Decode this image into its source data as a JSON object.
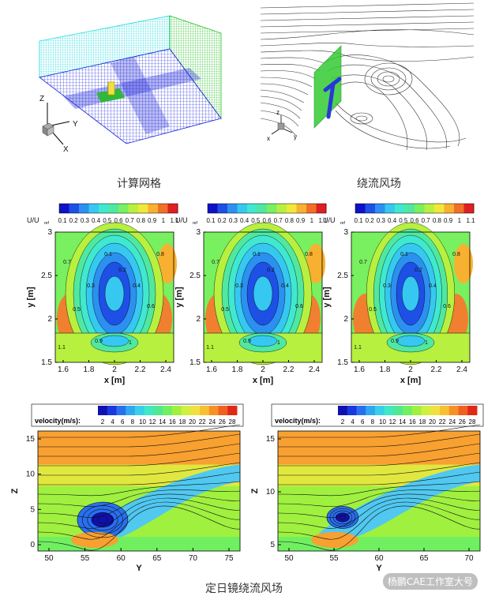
{
  "top": {
    "mesh_caption": "计算网格",
    "flow_caption": "绕流风场",
    "axis_labels": {
      "z": "Z",
      "y": "Y",
      "x": "X"
    },
    "small_axis_labels": {
      "z": "z",
      "x": "x",
      "y": "y"
    }
  },
  "middle": {
    "colorbar_label_main": "U/U",
    "colorbar_label_sub": "ref",
    "colorbar_ticks": [
      "0.1",
      "0.2",
      "0.3",
      "0.4",
      "0.5",
      "0.6",
      "0.7",
      "0.8",
      "0.9",
      "1",
      "1.1"
    ],
    "xlabel": "x [m]",
    "ylabel": "y [m]",
    "xticks": [
      "1.6",
      "1.8",
      "2",
      "2.2",
      "2.4"
    ],
    "yticks": [
      "1.5",
      "2",
      "2.5",
      "3"
    ],
    "contour_labels": [
      "0.1",
      "0.2",
      "0.3",
      "0.4",
      "0.5",
      "0.6",
      "0.7",
      "0.8",
      "0.9",
      "1",
      "1.1"
    ]
  },
  "bottom": {
    "colorbar_label": "velocity(m/s):",
    "colorbar_ticks": [
      "2",
      "4",
      "6",
      "8",
      "10",
      "12",
      "14",
      "16",
      "18",
      "20",
      "22",
      "24",
      "26",
      "28"
    ],
    "xlabel": "Y",
    "ylabel": "Z",
    "left_xticks": [
      "50",
      "55",
      "60",
      "65",
      "70",
      "75"
    ],
    "left_yticks": [
      "0",
      "5",
      "10",
      "15"
    ],
    "right_xticks": [
      "50",
      "55",
      "60",
      "65",
      "70"
    ],
    "right_yticks": [
      "5",
      "10",
      "15"
    ],
    "caption": "定日镜绕流风场"
  },
  "watermark": "杨鹏CAE工作室大号",
  "colors": {
    "mesh_blue": "#1a22d8",
    "mesh_cyan": "#19d8e0",
    "mesh_green": "#20c020",
    "mirror_yellow": "#f0e040",
    "panel_green": "#33cc33",
    "pole_blue": "#2838d8"
  }
}
